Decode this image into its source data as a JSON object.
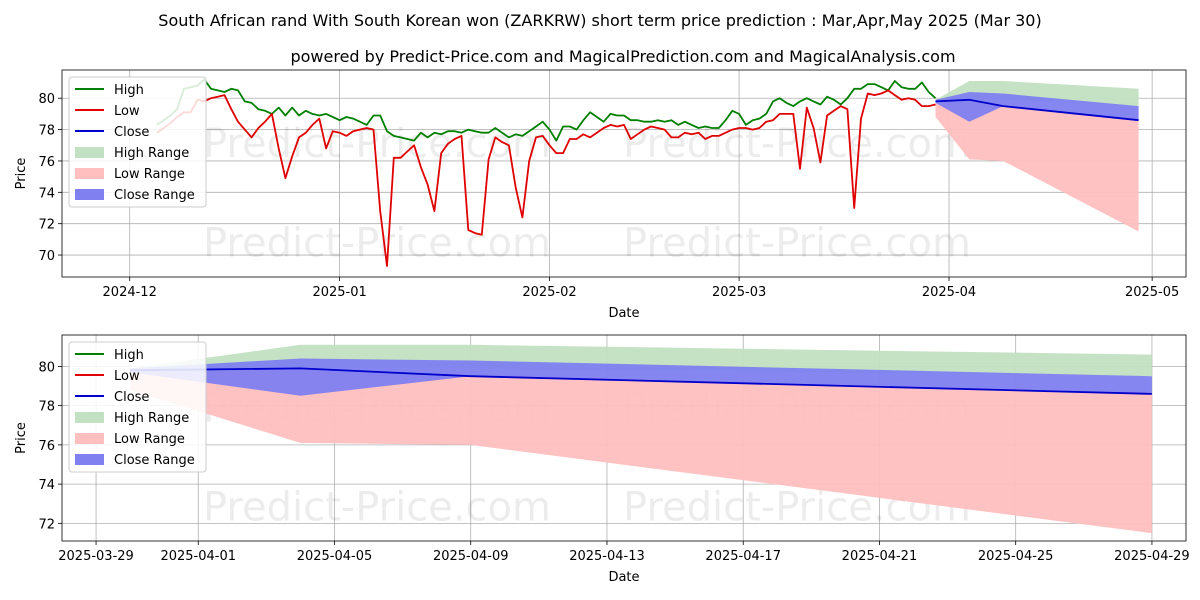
{
  "title": "South African rand With South Korean won (ZARKRW) short term price prediction : Mar,Apr,May 2025 (Mar 30)",
  "subtitle": "powered by Predict-Price.com and MagicalPrediction.com and MagicalAnalysis.com",
  "watermark": "Predict-Price.com",
  "colors": {
    "high": "#008000",
    "low": "#e00000",
    "close": "#0000cc",
    "high_range": "#c2e0c2",
    "low_range": "#ffbfbf",
    "close_range": "#8080f0"
  },
  "legend": [
    "High",
    "Low",
    "Close",
    "High Range",
    "Low Range",
    "Close Range"
  ],
  "chart_data": [
    {
      "type": "line",
      "xlabel": "Date",
      "ylabel": "Price",
      "x_domain": [
        "2024-11-21",
        "2025-05-06"
      ],
      "ylim": [
        68.6,
        81.8
      ],
      "x_ticks": [
        "2024-12",
        "2025-01",
        "2025-02",
        "2025-03",
        "2025-04",
        "2025-05"
      ],
      "x_tick_dates": [
        "2024-12-01",
        "2025-01-01",
        "2025-02-01",
        "2025-03-01",
        "2025-04-01",
        "2025-05-01"
      ],
      "y_ticks": [
        70,
        72,
        74,
        76,
        78,
        80
      ],
      "history": {
        "dates": [
          "2024-12-05",
          "2024-12-06",
          "2024-12-07",
          "2024-12-08",
          "2024-12-09",
          "2024-12-10",
          "2024-12-11",
          "2024-12-12",
          "2024-12-13",
          "2024-12-14",
          "2024-12-15",
          "2024-12-16",
          "2024-12-17",
          "2024-12-18",
          "2024-12-19",
          "2024-12-20",
          "2024-12-21",
          "2024-12-22",
          "2024-12-23",
          "2024-12-24",
          "2024-12-25",
          "2024-12-26",
          "2024-12-27",
          "2024-12-28",
          "2024-12-29",
          "2024-12-30",
          "2024-12-31",
          "2025-01-01",
          "2025-01-02",
          "2025-01-03",
          "2025-01-04",
          "2025-01-05",
          "2025-01-06",
          "2025-01-07",
          "2025-01-08",
          "2025-01-09",
          "2025-01-10",
          "2025-01-11",
          "2025-01-12",
          "2025-01-13",
          "2025-01-14",
          "2025-01-15",
          "2025-01-16",
          "2025-01-17",
          "2025-01-18",
          "2025-01-19",
          "2025-01-20",
          "2025-01-21",
          "2025-01-22",
          "2025-01-23",
          "2025-01-24",
          "2025-01-25",
          "2025-01-26",
          "2025-01-27",
          "2025-01-28",
          "2025-01-29",
          "2025-01-30",
          "2025-01-31",
          "2025-02-01",
          "2025-02-02",
          "2025-02-03",
          "2025-02-04",
          "2025-02-05",
          "2025-02-06",
          "2025-02-07",
          "2025-02-08",
          "2025-02-09",
          "2025-02-10",
          "2025-02-11",
          "2025-02-12",
          "2025-02-13",
          "2025-02-14",
          "2025-02-15",
          "2025-02-16",
          "2025-02-17",
          "2025-02-18",
          "2025-02-19",
          "2025-02-20",
          "2025-02-21",
          "2025-02-22",
          "2025-02-23",
          "2025-02-24",
          "2025-02-25",
          "2025-02-26",
          "2025-02-27",
          "2025-02-28",
          "2025-03-01",
          "2025-03-02",
          "2025-03-03",
          "2025-03-04",
          "2025-03-05",
          "2025-03-06",
          "2025-03-07",
          "2025-03-08",
          "2025-03-09",
          "2025-03-10",
          "2025-03-11",
          "2025-03-12",
          "2025-03-13",
          "2025-03-14",
          "2025-03-15",
          "2025-03-16",
          "2025-03-17",
          "2025-03-18",
          "2025-03-19",
          "2025-03-20",
          "2025-03-21",
          "2025-03-22",
          "2025-03-23",
          "2025-03-24",
          "2025-03-25",
          "2025-03-26",
          "2025-03-27",
          "2025-03-28",
          "2025-03-29",
          "2025-03-30"
        ],
        "high": [
          78.3,
          78.6,
          78.9,
          79.3,
          80.6,
          80.7,
          80.8,
          81.2,
          80.6,
          80.5,
          80.4,
          80.6,
          80.5,
          79.8,
          79.7,
          79.3,
          79.2,
          79.0,
          79.4,
          78.9,
          79.4,
          78.9,
          79.2,
          79.0,
          78.9,
          79.0,
          78.8,
          78.6,
          78.8,
          78.7,
          78.5,
          78.3,
          78.9,
          78.9,
          77.9,
          77.6,
          77.5,
          77.4,
          77.3,
          77.8,
          77.5,
          77.8,
          77.7,
          77.9,
          77.9,
          77.8,
          78.0,
          77.9,
          77.8,
          77.8,
          78.1,
          77.8,
          77.5,
          77.7,
          77.6,
          77.9,
          78.2,
          78.5,
          78.0,
          77.3,
          78.2,
          78.2,
          78.0,
          78.6,
          79.1,
          78.8,
          78.5,
          79.0,
          78.9,
          78.9,
          78.6,
          78.6,
          78.5,
          78.5,
          78.6,
          78.5,
          78.6,
          78.3,
          78.5,
          78.3,
          78.1,
          78.2,
          78.1,
          78.1,
          78.6,
          79.2,
          79.0,
          78.3,
          78.6,
          78.7,
          79.0,
          79.8,
          80.0,
          79.7,
          79.5,
          79.8,
          80.0,
          79.8,
          79.6,
          80.1,
          79.9,
          79.6,
          80.0,
          80.6,
          80.6,
          80.9,
          80.9,
          80.7,
          80.5,
          81.1,
          80.7,
          80.6,
          80.6,
          81.0,
          80.4,
          80.0
        ],
        "low": [
          77.8,
          78.1,
          78.4,
          78.8,
          79.1,
          79.1,
          79.9,
          79.8,
          80.0,
          80.1,
          80.2,
          79.3,
          78.5,
          78.0,
          77.5,
          78.1,
          78.5,
          79.0,
          76.8,
          74.9,
          76.3,
          77.5,
          77.8,
          78.3,
          78.7,
          76.8,
          77.9,
          77.8,
          77.6,
          77.9,
          78.0,
          78.1,
          78.0,
          72.8,
          69.3,
          76.2,
          76.2,
          76.6,
          77.0,
          75.6,
          74.5,
          72.8,
          76.5,
          77.1,
          77.4,
          77.6,
          71.6,
          71.4,
          71.3,
          76.1,
          77.5,
          77.2,
          77.0,
          74.3,
          72.4,
          76.0,
          77.5,
          77.6,
          77.0,
          76.5,
          76.5,
          77.4,
          77.4,
          77.7,
          77.5,
          77.8,
          78.1,
          78.3,
          78.2,
          78.3,
          77.4,
          77.7,
          78.0,
          78.2,
          78.1,
          78.0,
          77.5,
          77.5,
          77.8,
          77.7,
          77.8,
          77.4,
          77.6,
          77.6,
          77.8,
          78.0,
          78.1,
          78.1,
          78.0,
          78.1,
          78.5,
          78.6,
          79.0,
          79.0,
          79.0,
          75.5,
          79.4,
          78.1,
          75.9,
          78.9,
          79.2,
          79.5,
          79.3,
          73.0,
          78.7,
          80.3,
          80.2,
          80.3,
          80.5,
          80.2,
          79.9,
          80.0,
          79.9,
          79.5,
          79.5,
          79.6
        ]
      },
      "forecast": {
        "dates": [
          "2025-03-30",
          "2025-04-04",
          "2025-04-09",
          "2025-04-29"
        ],
        "close": [
          79.8,
          79.9,
          79.5,
          78.6
        ],
        "high_range_upper": [
          79.9,
          81.1,
          81.1,
          80.6
        ],
        "high_range_lower": [
          79.8,
          79.9,
          79.9,
          79.5
        ],
        "close_range_upper": [
          79.9,
          80.4,
          80.3,
          79.5
        ],
        "close_range_lower": [
          79.7,
          78.5,
          79.5,
          78.6
        ],
        "low_range_upper": [
          79.8,
          79.9,
          79.6,
          78.6
        ],
        "low_range_lower": [
          78.8,
          76.1,
          76.0,
          71.5
        ]
      }
    },
    {
      "type": "line",
      "xlabel": "Date",
      "ylabel": "Price",
      "x_domain": [
        "2025-03-28",
        "2025-04-30"
      ],
      "ylim": [
        71.1,
        81.6
      ],
      "x_ticks": [
        "2025-03-29",
        "2025-04-01",
        "2025-04-05",
        "2025-04-09",
        "2025-04-13",
        "2025-04-17",
        "2025-04-21",
        "2025-04-25",
        "2025-04-29"
      ],
      "y_ticks": [
        72,
        74,
        76,
        78,
        80
      ],
      "forecast": {
        "dates": [
          "2025-03-30",
          "2025-04-04",
          "2025-04-09",
          "2025-04-29"
        ],
        "close": [
          79.8,
          79.9,
          79.5,
          78.6
        ],
        "high_range_upper": [
          79.9,
          81.1,
          81.1,
          80.6
        ],
        "high_range_lower": [
          79.8,
          79.9,
          79.9,
          79.5
        ],
        "close_range_upper": [
          79.9,
          80.4,
          80.3,
          79.5
        ],
        "close_range_lower": [
          79.7,
          78.5,
          79.5,
          78.6
        ],
        "low_range_upper": [
          79.8,
          79.9,
          79.6,
          78.6
        ],
        "low_range_lower": [
          78.8,
          76.1,
          76.0,
          71.5
        ]
      }
    }
  ]
}
